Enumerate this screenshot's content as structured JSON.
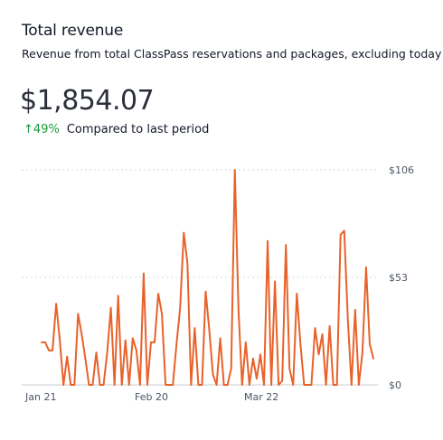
{
  "header": {
    "title": "Total revenue",
    "subtitle": "Revenue from total ClassPass reservations and packages, excluding today"
  },
  "summary": {
    "value": "$1,854.07",
    "change_pct": "49%",
    "change_label": "Compared to last period"
  },
  "colors": {
    "line": "#e8622a",
    "change_up": "#1a9b3a",
    "grid": "#d8dadf"
  },
  "icons": {
    "change_arrow": "arrow-up-icon"
  },
  "chart_data": {
    "type": "line",
    "title": "",
    "xlabel": "",
    "ylabel": "",
    "ylim": [
      0,
      106
    ],
    "y_ticks": [
      {
        "value": 106,
        "label": "$106"
      },
      {
        "value": 53,
        "label": "$53"
      },
      {
        "value": 0,
        "label": "$0"
      }
    ],
    "x_ticks": [
      {
        "index": 0,
        "label": "Jan 21"
      },
      {
        "index": 30,
        "label": "Feb 20"
      },
      {
        "index": 60,
        "label": "Mar 22"
      }
    ],
    "grid": true,
    "legend": "none",
    "series": [
      {
        "values": [
          21,
          21,
          17,
          17,
          40,
          22,
          0,
          14,
          0,
          0,
          35,
          25,
          13,
          0,
          0,
          16,
          0,
          0,
          16,
          38,
          0,
          44,
          0,
          22,
          0,
          23,
          17,
          0,
          55,
          0,
          21,
          21,
          45,
          35,
          0,
          0,
          0,
          20,
          38,
          75,
          60,
          0,
          28,
          0,
          0,
          46,
          27,
          5,
          0,
          23,
          0,
          0,
          8,
          107,
          37,
          0,
          21,
          0,
          13,
          3,
          15,
          0,
          71,
          0,
          51,
          0,
          2,
          69,
          8,
          0,
          45,
          20,
          0,
          0,
          0,
          28,
          15,
          25,
          0,
          29,
          0,
          0,
          74,
          76,
          32,
          0,
          37,
          0,
          16,
          58,
          20,
          13
        ]
      }
    ]
  }
}
